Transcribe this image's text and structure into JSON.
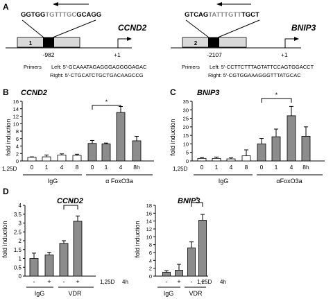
{
  "panels": {
    "A": {
      "letter": "A",
      "ccnd2": {
        "gene": "CCND2",
        "seq_pre": "GGTGG",
        "seq_mid": "TGTTTGC",
        "seq_post": "GCAGG",
        "box_label": "1",
        "position": "-982",
        "tss": "+1",
        "primers_label": "Primers",
        "left_primer": "Left: 5'-GCAAATAGAGGGAGGGGAGAC",
        "right_primer": "Right: 5'-CTGCATCTGCTGACAAGCCG"
      },
      "bnip3": {
        "gene": "BNIP3",
        "seq_pre": "GTCAG",
        "seq_mid": "TATTTGTT",
        "seq_post": "TGCT",
        "box_label": "2",
        "position": "-2107",
        "tss": "+1",
        "primers_label": "Primers",
        "left_primer": "Left: 5'-CCTTCTTTAGTATTCCAGTGGACCT",
        "right_primer": "Right: 5'-CGTGGAAAGGGTTTATGCAC"
      }
    },
    "B": {
      "letter": "B",
      "gene": "CCND2",
      "ylabel": "fold induction",
      "row_label": "1,25D",
      "ticks": [
        "0",
        "2",
        "4",
        "6",
        "8",
        "10",
        "12",
        "14",
        "16"
      ],
      "x_labels": [
        "0",
        "1",
        "4",
        "8",
        "0",
        "1",
        "4",
        "8h"
      ],
      "group1": "IgG",
      "group2": "α FoxO3a",
      "sig": "*"
    },
    "C": {
      "letter": "C",
      "gene": "BNIP3",
      "ylabel": "fold induction",
      "row_label": "1,25D",
      "ticks": [
        "0",
        "5",
        "10",
        "15",
        "20",
        "25",
        "30",
        "35"
      ],
      "x_labels": [
        "0",
        "1",
        "4",
        "8",
        "0",
        "1",
        "4",
        "8h"
      ],
      "group1": "IgG",
      "group2": "αFoxO3a",
      "sig": "*"
    },
    "D": {
      "letter": "D",
      "left": {
        "gene": "CCND2",
        "ylabel": "fold induction",
        "ticks": [
          "0",
          "0.5",
          "1",
          "1.5",
          "2",
          "2.5",
          "3",
          "3.5",
          "4"
        ],
        "x_labels": [
          "-",
          "+",
          "-",
          "+"
        ],
        "row_label": "1,25D",
        "time": "4h",
        "group1": "IgG",
        "group2": "VDR",
        "sig": "*"
      },
      "right": {
        "gene": "BNIP3",
        "ylabel": "fold induction",
        "ticks": [
          "0",
          "2",
          "4",
          "6",
          "8",
          "10",
          "12",
          "14",
          "16",
          "18"
        ],
        "x_labels": [
          "-",
          "+",
          "-",
          "+"
        ],
        "row_label": "1,25D",
        "time": "4h",
        "group1": "IgG",
        "group2": "VDR",
        "sig": "*"
      }
    }
  },
  "chart_data": [
    {
      "panel": "B",
      "type": "bar",
      "title": "CCND2",
      "ylabel": "fold induction",
      "ylim": [
        0,
        16
      ],
      "categories": [
        "IgG 0",
        "IgG 1",
        "IgG 4",
        "IgG 8",
        "α FoxO3a 0",
        "α FoxO3a 1",
        "α FoxO3a 4",
        "α FoxO3a 8h"
      ],
      "values": [
        1.0,
        1.1,
        1.6,
        1.5,
        4.7,
        4.6,
        13.0,
        5.4
      ],
      "errors": [
        0.1,
        0.5,
        0.3,
        0.3,
        0.8,
        0.2,
        1.6,
        1.2
      ],
      "colors": [
        "#ffffff",
        "#ffffff",
        "#ffffff",
        "#ffffff",
        "#8c8c8c",
        "#8c8c8c",
        "#8c8c8c",
        "#8c8c8c"
      ],
      "significance": {
        "from": 4,
        "to": 6,
        "label": "*"
      }
    },
    {
      "panel": "C",
      "type": "bar",
      "title": "BNIP3",
      "ylabel": "fold induction",
      "ylim": [
        0,
        35
      ],
      "categories": [
        "IgG 0",
        "IgG 1",
        "IgG 4",
        "IgG 8",
        "αFoxO3a 0",
        "αFoxO3a 1",
        "αFoxO3a 4",
        "αFoxO3a 8h"
      ],
      "values": [
        1.5,
        1.5,
        1.2,
        3.0,
        10.0,
        14.2,
        26.5,
        14.5
      ],
      "errors": [
        0.5,
        0.8,
        0.6,
        3.5,
        3.2,
        4.5,
        5.5,
        5.5
      ],
      "colors": [
        "#ffffff",
        "#ffffff",
        "#ffffff",
        "#ffffff",
        "#8c8c8c",
        "#8c8c8c",
        "#8c8c8c",
        "#8c8c8c"
      ],
      "significance": {
        "from": 4,
        "to": 6,
        "label": "*"
      }
    },
    {
      "panel": "D-left",
      "type": "bar",
      "title": "CCND2",
      "ylabel": "fold induction",
      "ylim": [
        0,
        4
      ],
      "categories": [
        "IgG -",
        "IgG +",
        "VDR -",
        "VDR +"
      ],
      "values": [
        1.0,
        1.2,
        1.85,
        3.1
      ],
      "errors": [
        0.3,
        0.15,
        0.15,
        0.3
      ],
      "colors": [
        "#8c8c8c",
        "#8c8c8c",
        "#8c8c8c",
        "#8c8c8c"
      ],
      "significance": {
        "from": 2,
        "to": 3,
        "label": "*"
      }
    },
    {
      "panel": "D-right",
      "type": "bar",
      "title": "BNIP3",
      "ylabel": "fold induction",
      "ylim": [
        0,
        18
      ],
      "categories": [
        "IgG -",
        "IgG +",
        "VDR -",
        "VDR +"
      ],
      "values": [
        1.0,
        1.5,
        7.2,
        14.2
      ],
      "errors": [
        0.4,
        1.5,
        1.5,
        1.5
      ],
      "colors": [
        "#8c8c8c",
        "#8c8c8c",
        "#8c8c8c",
        "#8c8c8c"
      ],
      "significance": {
        "from": 2,
        "to": 3,
        "label": "*"
      }
    }
  ]
}
